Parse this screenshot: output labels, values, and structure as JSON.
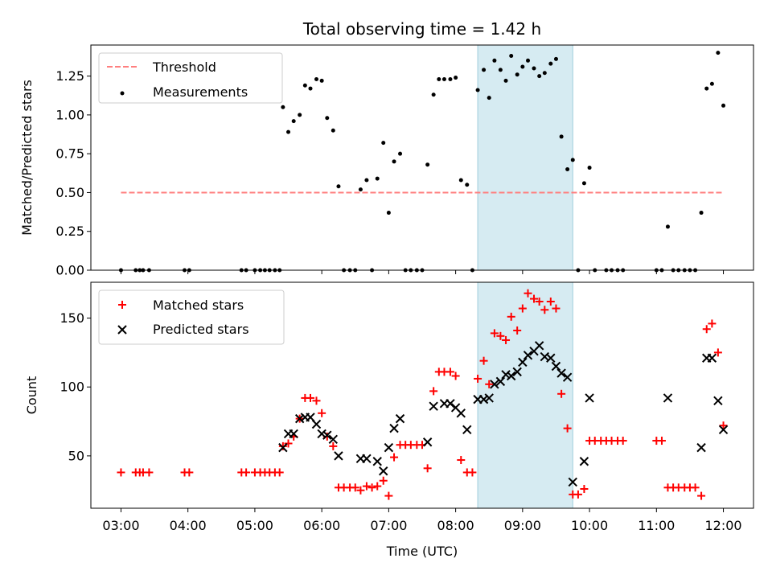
{
  "chart_data": [
    {
      "type": "scatter",
      "panel": "top",
      "title": "Total observing time = 1.42 h",
      "ylabel": "Matched/Predicted stars",
      "ylim": [
        0,
        1.45
      ],
      "yticks": [
        0,
        0.25,
        0.5,
        0.75,
        1.0,
        1.25
      ],
      "ytick_labels": [
        "0.00",
        "0.25",
        "0.50",
        "0.75",
        "1.00",
        "1.25"
      ],
      "xlim": [
        2.55,
        12.45
      ],
      "xticks": [
        3,
        4,
        5,
        6,
        7,
        8,
        9,
        10,
        11,
        12
      ],
      "highlight_span": [
        8.33,
        9.75
      ],
      "highlight_color": "#add8e6",
      "legend_position": "top-left",
      "threshold": {
        "name": "Threshold",
        "value": 0.5,
        "x_range": [
          3,
          12
        ],
        "color": "#ff7f7f"
      },
      "series": [
        {
          "name": "Measurements",
          "color": "#000000",
          "points": [
            [
              3.0,
              0.0
            ],
            [
              3.22,
              0.0
            ],
            [
              3.28,
              0.0
            ],
            [
              3.33,
              0.0
            ],
            [
              3.42,
              0.0
            ],
            [
              3.95,
              0.0
            ],
            [
              4.02,
              0.0
            ],
            [
              4.8,
              0.0
            ],
            [
              4.87,
              0.0
            ],
            [
              5.0,
              0.0
            ],
            [
              5.08,
              0.0
            ],
            [
              5.15,
              0.0
            ],
            [
              5.22,
              0.0
            ],
            [
              5.3,
              0.0
            ],
            [
              5.37,
              0.0
            ],
            [
              5.42,
              1.05
            ],
            [
              5.5,
              0.89
            ],
            [
              5.58,
              0.96
            ],
            [
              5.67,
              1.0
            ],
            [
              5.75,
              1.19
            ],
            [
              5.83,
              1.17
            ],
            [
              5.92,
              1.23
            ],
            [
              6.0,
              1.22
            ],
            [
              6.08,
              0.98
            ],
            [
              6.17,
              0.9
            ],
            [
              6.25,
              0.54
            ],
            [
              6.33,
              0.0
            ],
            [
              6.42,
              0.0
            ],
            [
              6.5,
              0.0
            ],
            [
              6.58,
              0.52
            ],
            [
              6.67,
              0.58
            ],
            [
              6.75,
              0.0
            ],
            [
              6.83,
              0.59
            ],
            [
              6.92,
              0.82
            ],
            [
              7.0,
              0.37
            ],
            [
              7.08,
              0.7
            ],
            [
              7.17,
              0.75
            ],
            [
              7.25,
              0.0
            ],
            [
              7.33,
              0.0
            ],
            [
              7.42,
              0.0
            ],
            [
              7.5,
              0.0
            ],
            [
              7.58,
              0.68
            ],
            [
              7.67,
              1.13
            ],
            [
              7.75,
              1.23
            ],
            [
              7.83,
              1.23
            ],
            [
              7.92,
              1.23
            ],
            [
              8.0,
              1.24
            ],
            [
              8.08,
              0.58
            ],
            [
              8.17,
              0.55
            ],
            [
              8.25,
              0.0
            ],
            [
              8.33,
              1.16
            ],
            [
              8.42,
              1.29
            ],
            [
              8.5,
              1.11
            ],
            [
              8.58,
              1.35
            ],
            [
              8.67,
              1.29
            ],
            [
              8.75,
              1.22
            ],
            [
              8.83,
              1.38
            ],
            [
              8.92,
              1.26
            ],
            [
              9.0,
              1.31
            ],
            [
              9.08,
              1.35
            ],
            [
              9.17,
              1.3
            ],
            [
              9.25,
              1.25
            ],
            [
              9.33,
              1.27
            ],
            [
              9.42,
              1.33
            ],
            [
              9.5,
              1.36
            ],
            [
              9.58,
              0.86
            ],
            [
              9.67,
              0.65
            ],
            [
              9.75,
              0.71
            ],
            [
              9.83,
              0.0
            ],
            [
              9.92,
              0.56
            ],
            [
              10.0,
              0.66
            ],
            [
              10.08,
              0.0
            ],
            [
              10.25,
              0.0
            ],
            [
              10.33,
              0.0
            ],
            [
              10.42,
              0.0
            ],
            [
              10.5,
              0.0
            ],
            [
              11.0,
              0.0
            ],
            [
              11.08,
              0.0
            ],
            [
              11.17,
              0.28
            ],
            [
              11.25,
              0.0
            ],
            [
              11.33,
              0.0
            ],
            [
              11.42,
              0.0
            ],
            [
              11.5,
              0.0
            ],
            [
              11.58,
              0.0
            ],
            [
              11.67,
              0.37
            ],
            [
              11.75,
              1.17
            ],
            [
              11.83,
              1.2
            ],
            [
              11.92,
              1.4
            ],
            [
              12.0,
              1.06
            ]
          ]
        }
      ]
    },
    {
      "type": "scatter",
      "panel": "bottom",
      "xlabel": "Time (UTC)",
      "ylabel": "Count",
      "ylim": [
        12,
        176
      ],
      "yticks": [
        50,
        100,
        150
      ],
      "ytick_labels": [
        "50",
        "100",
        "150"
      ],
      "xlim": [
        2.55,
        12.45
      ],
      "xticks": [
        3,
        4,
        5,
        6,
        7,
        8,
        9,
        10,
        11,
        12
      ],
      "xtick_labels": [
        "03:00",
        "04:00",
        "05:00",
        "06:00",
        "07:00",
        "08:00",
        "09:00",
        "10:00",
        "11:00",
        "12:00"
      ],
      "highlight_span": [
        8.33,
        9.75
      ],
      "highlight_color": "#add8e6",
      "legend_position": "top-left",
      "series": [
        {
          "name": "Matched stars",
          "marker": "plus",
          "color": "#ff0000",
          "points": [
            [
              3.0,
              38
            ],
            [
              3.22,
              38
            ],
            [
              3.28,
              38
            ],
            [
              3.33,
              38
            ],
            [
              3.42,
              38
            ],
            [
              3.95,
              38
            ],
            [
              4.02,
              38
            ],
            [
              4.8,
              38
            ],
            [
              4.87,
              38
            ],
            [
              5.0,
              38
            ],
            [
              5.08,
              38
            ],
            [
              5.15,
              38
            ],
            [
              5.22,
              38
            ],
            [
              5.3,
              38
            ],
            [
              5.37,
              38
            ],
            [
              5.42,
              57
            ],
            [
              5.5,
              59
            ],
            [
              5.58,
              64
            ],
            [
              5.67,
              77
            ],
            [
              5.75,
              92
            ],
            [
              5.83,
              92
            ],
            [
              5.92,
              90
            ],
            [
              6.0,
              81
            ],
            [
              6.08,
              64
            ],
            [
              6.17,
              57
            ],
            [
              6.25,
              27
            ],
            [
              6.33,
              27
            ],
            [
              6.42,
              27
            ],
            [
              6.5,
              27
            ],
            [
              6.58,
              25
            ],
            [
              6.67,
              28
            ],
            [
              6.75,
              27
            ],
            [
              6.83,
              28
            ],
            [
              6.92,
              32
            ],
            [
              7.0,
              21
            ],
            [
              7.08,
              49
            ],
            [
              7.17,
              58
            ],
            [
              7.25,
              58
            ],
            [
              7.33,
              58
            ],
            [
              7.42,
              58
            ],
            [
              7.5,
              58
            ],
            [
              7.58,
              41
            ],
            [
              7.67,
              97
            ],
            [
              7.75,
              111
            ],
            [
              7.83,
              111
            ],
            [
              7.92,
              111
            ],
            [
              8.0,
              108
            ],
            [
              8.08,
              47
            ],
            [
              8.17,
              38
            ],
            [
              8.25,
              38
            ],
            [
              8.33,
              106
            ],
            [
              8.42,
              119
            ],
            [
              8.5,
              102
            ],
            [
              8.58,
              139
            ],
            [
              8.67,
              137
            ],
            [
              8.75,
              134
            ],
            [
              8.83,
              151
            ],
            [
              8.92,
              141
            ],
            [
              9.0,
              157
            ],
            [
              9.08,
              168
            ],
            [
              9.17,
              164
            ],
            [
              9.25,
              162
            ],
            [
              9.33,
              156
            ],
            [
              9.42,
              162
            ],
            [
              9.5,
              157
            ],
            [
              9.58,
              95
            ],
            [
              9.67,
              70
            ],
            [
              9.75,
              22
            ],
            [
              9.83,
              22
            ],
            [
              9.92,
              26
            ],
            [
              10.0,
              61
            ],
            [
              10.08,
              61
            ],
            [
              10.17,
              61
            ],
            [
              10.25,
              61
            ],
            [
              10.33,
              61
            ],
            [
              10.42,
              61
            ],
            [
              10.5,
              61
            ],
            [
              11.0,
              61
            ],
            [
              11.08,
              61
            ],
            [
              11.17,
              27
            ],
            [
              11.25,
              27
            ],
            [
              11.33,
              27
            ],
            [
              11.42,
              27
            ],
            [
              11.5,
              27
            ],
            [
              11.58,
              27
            ],
            [
              11.67,
              21
            ],
            [
              11.75,
              142
            ],
            [
              11.83,
              146
            ],
            [
              11.92,
              125
            ],
            [
              12.0,
              72
            ]
          ]
        },
        {
          "name": "Predicted stars",
          "marker": "x",
          "color": "#000000",
          "points": [
            [
              5.42,
              56
            ],
            [
              5.5,
              66
            ],
            [
              5.58,
              66
            ],
            [
              5.67,
              77
            ],
            [
              5.75,
              78
            ],
            [
              5.83,
              78
            ],
            [
              5.92,
              73
            ],
            [
              6.0,
              66
            ],
            [
              6.08,
              65
            ],
            [
              6.17,
              62
            ],
            [
              6.25,
              50
            ],
            [
              6.58,
              48
            ],
            [
              6.67,
              48
            ],
            [
              6.83,
              46
            ],
            [
              6.92,
              39
            ],
            [
              7.0,
              56
            ],
            [
              7.08,
              70
            ],
            [
              7.17,
              77
            ],
            [
              7.58,
              60
            ],
            [
              7.67,
              86
            ],
            [
              7.83,
              88
            ],
            [
              7.92,
              88
            ],
            [
              8.0,
              85
            ],
            [
              8.08,
              81
            ],
            [
              8.17,
              69
            ],
            [
              8.33,
              91
            ],
            [
              8.42,
              91
            ],
            [
              8.5,
              92
            ],
            [
              8.58,
              102
            ],
            [
              8.67,
              104
            ],
            [
              8.75,
              109
            ],
            [
              8.83,
              108
            ],
            [
              8.92,
              111
            ],
            [
              9.0,
              118
            ],
            [
              9.08,
              123
            ],
            [
              9.17,
              126
            ],
            [
              9.25,
              130
            ],
            [
              9.33,
              122
            ],
            [
              9.42,
              121
            ],
            [
              9.5,
              115
            ],
            [
              9.58,
              110
            ],
            [
              9.67,
              107
            ],
            [
              9.75,
              31
            ],
            [
              9.92,
              46
            ],
            [
              10.0,
              92
            ],
            [
              11.17,
              92
            ],
            [
              11.67,
              56
            ],
            [
              11.75,
              121
            ],
            [
              11.83,
              121
            ],
            [
              11.92,
              90
            ],
            [
              12.0,
              69
            ]
          ]
        }
      ]
    }
  ]
}
